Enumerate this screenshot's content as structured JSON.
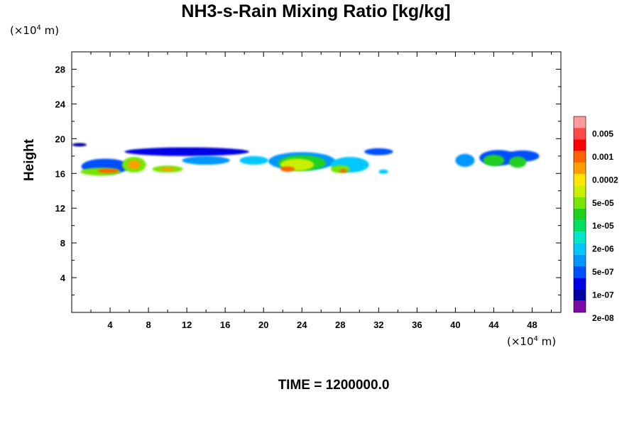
{
  "chart_data": {
    "type": "heatmap",
    "title": "NH3-s-Rain Mixing Ratio [kg/kg]",
    "ylabel": "Height",
    "x_unit": {
      "prefix": "(×10",
      "exp": "4",
      "suffix": " m)"
    },
    "y_unit": {
      "prefix": "(×10",
      "exp": "4",
      "suffix": " m)"
    },
    "xlim": [
      0,
      51
    ],
    "ylim": [
      0,
      30
    ],
    "x_ticks": [
      4,
      8,
      12,
      16,
      20,
      24,
      28,
      32,
      36,
      40,
      44,
      48
    ],
    "y_ticks": [
      4,
      8,
      12,
      16,
      20,
      24,
      28
    ],
    "colorbar": {
      "labels": [
        "0.005",
        "0.001",
        "0.0002",
        "5e-05",
        "1e-05",
        "2e-06",
        "5e-07",
        "1e-07",
        "2e-08"
      ],
      "colors": [
        "#ff9a9a",
        "#ff4a4a",
        "#ff0000",
        "#ff6400",
        "#ffa000",
        "#ffe600",
        "#c8f000",
        "#78e600",
        "#20d020",
        "#00e060",
        "#00e6c8",
        "#00c8ff",
        "#0096ff",
        "#0050ff",
        "#0000e6",
        "#0000a0",
        "#7a0aa0"
      ]
    },
    "blobs": [
      {
        "x": 0.8,
        "y": 19.3,
        "w": 1.5,
        "h": 0.4,
        "level": 1
      },
      {
        "x": 3.5,
        "y": 16.8,
        "w": 5.0,
        "h": 1.8,
        "level": 3
      },
      {
        "x": 3.0,
        "y": 16.2,
        "w": 4.2,
        "h": 0.9,
        "level": 9
      },
      {
        "x": 3.8,
        "y": 16.3,
        "w": 2.2,
        "h": 0.5,
        "level": 13
      },
      {
        "x": 6.5,
        "y": 17.0,
        "w": 2.5,
        "h": 1.8,
        "level": 9
      },
      {
        "x": 6.5,
        "y": 17.0,
        "w": 1.3,
        "h": 1.0,
        "level": 12
      },
      {
        "x": 10.0,
        "y": 16.5,
        "w": 3.2,
        "h": 0.8,
        "level": 9
      },
      {
        "x": 10.0,
        "y": 16.5,
        "w": 1.6,
        "h": 0.4,
        "level": 12
      },
      {
        "x": 12.0,
        "y": 18.5,
        "w": 13.0,
        "h": 1.0,
        "level": 2
      },
      {
        "x": 14.0,
        "y": 17.5,
        "w": 5.0,
        "h": 1.0,
        "level": 4
      },
      {
        "x": 19.0,
        "y": 17.5,
        "w": 3.0,
        "h": 1.0,
        "level": 5
      },
      {
        "x": 24.0,
        "y": 17.4,
        "w": 7.0,
        "h": 2.1,
        "level": 4
      },
      {
        "x": 24.0,
        "y": 17.2,
        "w": 5.0,
        "h": 1.8,
        "level": 8
      },
      {
        "x": 23.5,
        "y": 17.0,
        "w": 3.5,
        "h": 1.4,
        "level": 10
      },
      {
        "x": 22.5,
        "y": 16.5,
        "w": 1.5,
        "h": 0.6,
        "level": 13
      },
      {
        "x": 29.0,
        "y": 17.0,
        "w": 4.0,
        "h": 1.8,
        "level": 5
      },
      {
        "x": 28.0,
        "y": 16.5,
        "w": 2.0,
        "h": 0.9,
        "level": 9
      },
      {
        "x": 28.3,
        "y": 16.3,
        "w": 0.8,
        "h": 0.4,
        "level": 13
      },
      {
        "x": 32.0,
        "y": 18.5,
        "w": 3.0,
        "h": 0.8,
        "level": 3
      },
      {
        "x": 32.5,
        "y": 16.2,
        "w": 1.0,
        "h": 0.5,
        "level": 5
      },
      {
        "x": 41.0,
        "y": 17.5,
        "w": 2.0,
        "h": 1.5,
        "level": 4
      },
      {
        "x": 44.5,
        "y": 17.8,
        "w": 4.0,
        "h": 1.8,
        "level": 3
      },
      {
        "x": 44.0,
        "y": 17.5,
        "w": 2.2,
        "h": 1.3,
        "level": 8
      },
      {
        "x": 47.0,
        "y": 18.0,
        "w": 3.5,
        "h": 1.3,
        "level": 3
      },
      {
        "x": 46.5,
        "y": 17.3,
        "w": 1.8,
        "h": 1.3,
        "level": 8
      }
    ]
  },
  "time_label": "TIME = 1200000.0"
}
